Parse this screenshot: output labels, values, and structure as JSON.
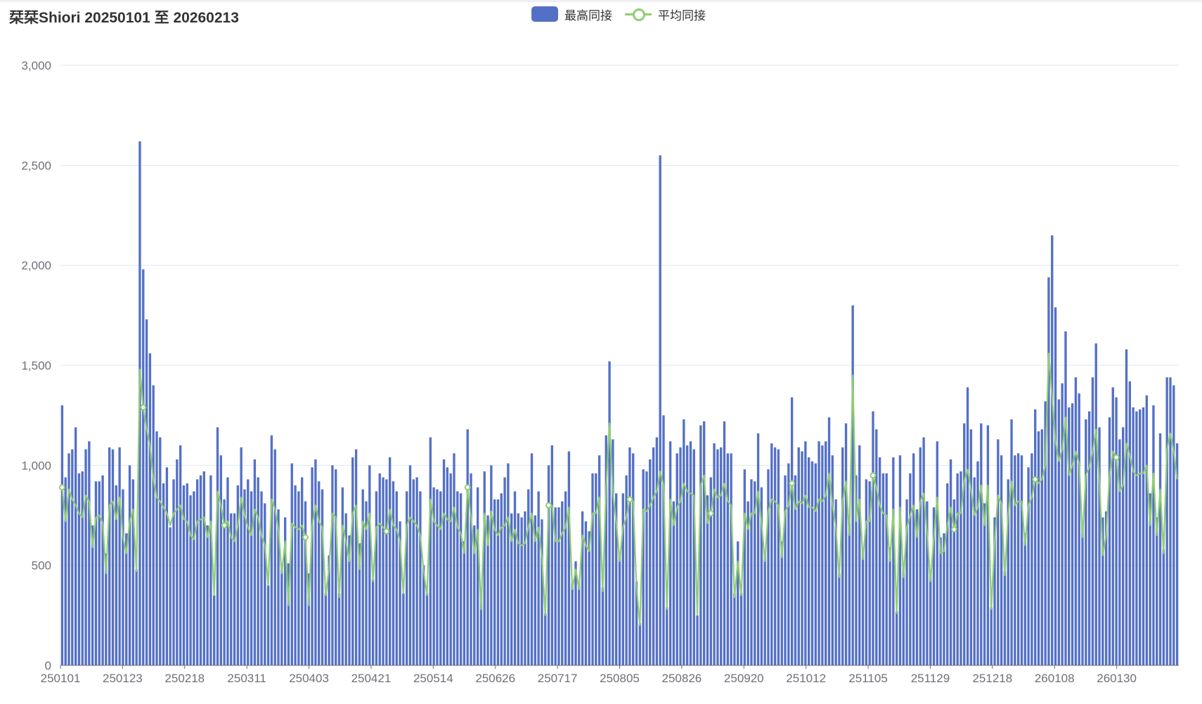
{
  "title": "栞栞Shiori 20250101 至 20260213",
  "legend": [
    {
      "name": "最高同接",
      "color": "#5470c6",
      "kind": "bar"
    },
    {
      "name": "平均同接",
      "color": "#91cc75",
      "kind": "line"
    }
  ],
  "chart_data": {
    "type": "bar",
    "title": "栞栞Shiori 20250101 至 20260213",
    "xlabel": "",
    "ylabel": "",
    "ylim": [
      0,
      3000
    ],
    "yticks": [
      "0",
      "500",
      "1,000",
      "1,500",
      "2,000",
      "2,500",
      "3,000"
    ],
    "grid": true,
    "legend_position": "top-center",
    "category_start": "20250101",
    "category_end": "20260213",
    "xtick_labels": [
      "250101",
      "250123",
      "250218",
      "250311",
      "250403",
      "250421",
      "250514",
      "250626",
      "250717",
      "250805",
      "250826",
      "250920",
      "251012",
      "251105",
      "251129",
      "251218",
      "260108",
      "260130"
    ],
    "series": [
      {
        "name": "最高同接",
        "type": "bar",
        "color": "#5470c6",
        "values": [
          1300,
          940,
          1060,
          1080,
          1190,
          960,
          970,
          1080,
          1120,
          700,
          920,
          920,
          950,
          560,
          1090,
          1080,
          900,
          1090,
          880,
          660,
          1000,
          930,
          480,
          2620,
          1980,
          1730,
          1560,
          1400,
          1170,
          1140,
          910,
          990,
          690,
          930,
          1030,
          1100,
          900,
          910,
          850,
          870,
          930,
          950,
          970,
          700,
          950,
          350,
          1190,
          1050,
          830,
          940,
          760,
          760,
          900,
          1090,
          880,
          930,
          870,
          1030,
          940,
          870,
          810,
          400,
          1150,
          1080,
          780,
          480,
          740,
          510,
          1010,
          900,
          870,
          940,
          820,
          460,
          990,
          1030,
          920,
          880,
          360,
          550,
          1000,
          980,
          360,
          890,
          760,
          650,
          1040,
          1080,
          610,
          880,
          820,
          1000,
          430,
          870,
          960,
          940,
          930,
          1040,
          920,
          870,
          720,
          360,
          870,
          1000,
          930,
          940,
          870,
          500,
          360,
          1140,
          890,
          880,
          870,
          1030,
          990,
          960,
          1060,
          870,
          860,
          620,
          1180,
          960,
          700,
          890,
          350,
          970,
          750,
          1000,
          830,
          830,
          860,
          940,
          1010,
          760,
          870,
          760,
          740,
          770,
          880,
          1060,
          750,
          870,
          730,
          260,
          1000,
          1100,
          790,
          790,
          820,
          870,
          1070,
          410,
          520,
          410,
          770,
          720,
          670,
          960,
          960,
          1050,
          390,
          1150,
          1520,
          1130,
          860,
          560,
          860,
          950,
          1090,
          1060,
          420,
          210,
          980,
          970,
          1030,
          1090,
          1140,
          2550,
          1250,
          290,
          1120,
          820,
          1060,
          1090,
          1230,
          1100,
          1120,
          1080,
          250,
          1200,
          1220,
          850,
          940,
          1110,
          1080,
          1090,
          1220,
          1060,
          1060,
          360,
          620,
          360,
          980,
          820,
          930,
          920,
          1160,
          890,
          560,
          980,
          1110,
          1090,
          1080,
          620,
          950,
          1010,
          1340,
          950,
          1090,
          1070,
          1120,
          1040,
          1020,
          1010,
          1120,
          1100,
          1120,
          1240,
          1050,
          830,
          460,
          1090,
          1210,
          710,
          1800,
          950,
          1100,
          570,
          930,
          920,
          1270,
          1180,
          1040,
          960,
          960,
          590,
          1040,
          270,
          1050,
          480,
          830,
          960,
          1060,
          780,
          1090,
          1140,
          820,
          450,
          790,
          1120,
          640,
          660,
          910,
          1030,
          830,
          960,
          970,
          1210,
          1390,
          1180,
          940,
          1020,
          1210,
          810,
          1200,
          290,
          740,
          1130,
          1050,
          470,
          930,
          1230,
          1050,
          1060,
          1050,
          660,
          990,
          1060,
          1280,
          1170,
          1180,
          1320,
          1940,
          2150,
          1790,
          1330,
          1410,
          1670,
          1290,
          1310,
          1440,
          1360,
          720,
          1230,
          1270,
          1440,
          1610,
          1190,
          740,
          770,
          1240,
          1390,
          1340,
          1130,
          1190,
          1580,
          1420,
          1290,
          1270,
          1280,
          1290,
          1350,
          860,
          1300,
          740,
          1160,
          580,
          1440,
          1440,
          1400,
          1110
        ]
      },
      {
        "name": "平均同接",
        "type": "line",
        "color": "#91cc75",
        "values": [
          890,
          720,
          880,
          830,
          800,
          760,
          740,
          850,
          820,
          590,
          740,
          750,
          710,
          460,
          800,
          820,
          730,
          840,
          640,
          560,
          720,
          780,
          470,
          1480,
          1290,
          1180,
          1100,
          930,
          840,
          820,
          790,
          760,
          700,
          760,
          780,
          800,
          730,
          720,
          650,
          630,
          720,
          730,
          740,
          640,
          720,
          350,
          870,
          800,
          700,
          720,
          640,
          620,
          700,
          840,
          750,
          690,
          650,
          780,
          740,
          650,
          600,
          400,
          830,
          780,
          680,
          460,
          620,
          300,
          710,
          690,
          680,
          700,
          640,
          300,
          700,
          800,
          720,
          690,
          350,
          480,
          760,
          740,
          340,
          700,
          620,
          520,
          760,
          800,
          480,
          720,
          680,
          760,
          420,
          690,
          710,
          690,
          670,
          780,
          700,
          680,
          620,
          360,
          700,
          740,
          720,
          700,
          650,
          470,
          350,
          830,
          720,
          700,
          680,
          760,
          730,
          720,
          790,
          690,
          660,
          560,
          890,
          740,
          560,
          680,
          280,
          760,
          600,
          770,
          680,
          650,
          690,
          700,
          740,
          620,
          680,
          610,
          600,
          610,
          690,
          760,
          620,
          690,
          540,
          250,
          800,
          800,
          620,
          620,
          660,
          690,
          790,
          380,
          480,
          380,
          650,
          600,
          570,
          760,
          760,
          840,
          370,
          880,
          1210,
          860,
          720,
          520,
          690,
          740,
          830,
          820,
          390,
          200,
          780,
          770,
          800,
          840,
          870,
          970,
          900,
          280,
          830,
          700,
          790,
          820,
          910,
          870,
          860,
          850,
          250,
          900,
          950,
          710,
          760,
          880,
          840,
          850,
          910,
          820,
          800,
          340,
          520,
          350,
          760,
          680,
          760,
          760,
          870,
          710,
          520,
          770,
          830,
          820,
          800,
          540,
          770,
          800,
          910,
          780,
          820,
          810,
          850,
          790,
          790,
          770,
          830,
          820,
          850,
          960,
          800,
          690,
          440,
          820,
          920,
          650,
          1450,
          720,
          830,
          530,
          720,
          720,
          950,
          890,
          800,
          760,
          750,
          520,
          780,
          260,
          790,
          440,
          690,
          750,
          800,
          640,
          820,
          860,
          660,
          420,
          640,
          840,
          560,
          570,
          700,
          790,
          680,
          760,
          760,
          920,
          980,
          880,
          750,
          790,
          900,
          700,
          900,
          280,
          620,
          850,
          810,
          450,
          750,
          920,
          800,
          820,
          820,
          600,
          800,
          840,
          930,
          910,
          930,
          1000,
          1560,
          1340,
          1120,
          1020,
          1080,
          1240,
          950,
          1000,
          1070,
          1010,
          640,
          950,
          990,
          1070,
          1180,
          920,
          550,
          650,
          950,
          1070,
          1040,
          870,
          900,
          1110,
          1050,
          970,
          950,
          960,
          960,
          1000,
          700,
          960,
          650,
          880,
          560,
          1080,
          1160,
          1070,
          930
        ]
      }
    ]
  }
}
